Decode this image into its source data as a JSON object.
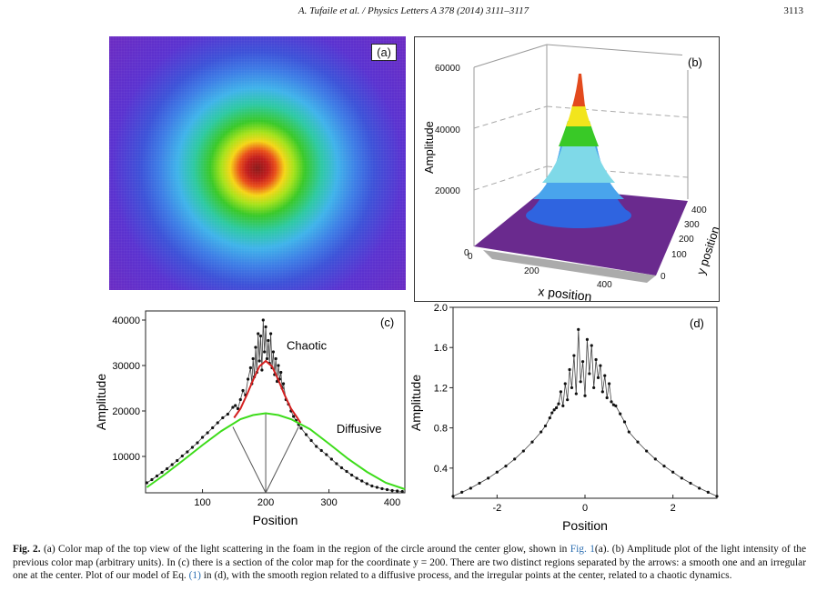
{
  "header": {
    "journal": "A. Tufaile et al. / Physics Letters A 378 (2014) 3111–3117",
    "page": "3113"
  },
  "panels": {
    "a": {
      "label": "(a)"
    },
    "b": {
      "label": "(b)",
      "zlabel": "Amplitude",
      "xlabel": "x position",
      "ylabel": "y position",
      "zticks": [
        "60000",
        "40000",
        "20000",
        "0"
      ],
      "xticks": [
        "0",
        "200",
        "400"
      ],
      "yticks": [
        "400",
        "300",
        "200",
        "100",
        "0"
      ]
    }
  },
  "colors": {
    "chaotic_fit": "#d42020",
    "diffusive_fit": "#3ddc1a",
    "points": "#111111",
    "link": "#2a6db0"
  },
  "chart_data": [
    {
      "type": "scatter",
      "label": "(c)",
      "xlabel": "Position",
      "ylabel": "Amplitude",
      "xlim": [
        10,
        420
      ],
      "ylim": [
        2000,
        42000
      ],
      "xticks": [
        100,
        200,
        300,
        400
      ],
      "yticks": [
        10000,
        20000,
        30000,
        40000
      ],
      "xtick_labels": [
        "100",
        "200",
        "300",
        "400"
      ],
      "ytick_labels": [
        "10000",
        "20000",
        "30000",
        "40000"
      ],
      "annotations": [
        {
          "text": "Chaotic",
          "x": 233,
          "y": 33500
        },
        {
          "text": "Diffusive",
          "x": 312,
          "y": 15200
        }
      ],
      "arrow_origin": {
        "x": 200,
        "y": 2000
      },
      "arrow_targets": [
        {
          "x": 148,
          "y": 16500
        },
        {
          "x": 200,
          "y": 19300
        },
        {
          "x": 252,
          "y": 16500
        }
      ],
      "series": [
        {
          "name": "",
          "kind": "points",
          "x": [
            12,
            20,
            28,
            36,
            44,
            52,
            60,
            68,
            76,
            84,
            92,
            100,
            108,
            116,
            124,
            132,
            140,
            148,
            152,
            156,
            160,
            164,
            168,
            172,
            176,
            178,
            180,
            182,
            184,
            186,
            188,
            190,
            192,
            194,
            196,
            198,
            200,
            202,
            204,
            206,
            208,
            210,
            212,
            214,
            216,
            218,
            220,
            222,
            224,
            226,
            228,
            232,
            236,
            240,
            244,
            248,
            252,
            256,
            264,
            272,
            280,
            288,
            296,
            304,
            312,
            320,
            328,
            336,
            344,
            352,
            360,
            368,
            376,
            384,
            392,
            400,
            408,
            416
          ],
          "y": [
            4200,
            4900,
            5700,
            6500,
            7300,
            8200,
            9100,
            10100,
            11000,
            12000,
            13000,
            14200,
            15200,
            16300,
            17400,
            18500,
            19300,
            20800,
            21200,
            20500,
            22500,
            24500,
            23500,
            27000,
            29500,
            26000,
            31500,
            27500,
            34000,
            28500,
            37000,
            31000,
            36500,
            29000,
            40000,
            33000,
            38500,
            31500,
            35500,
            30500,
            37000,
            29500,
            33000,
            28000,
            31500,
            26500,
            30000,
            27000,
            28500,
            25000,
            26000,
            22500,
            21500,
            20000,
            18800,
            17900,
            17000,
            16200,
            14800,
            13500,
            12200,
            11300,
            10400,
            9400,
            8400,
            7500,
            6700,
            5900,
            5200,
            4600,
            4000,
            3500,
            3200,
            2900,
            2700,
            2500,
            2400,
            2300
          ]
        },
        {
          "name": "",
          "kind": "line",
          "color": "#d42020",
          "x": [
            150,
            160,
            170,
            180,
            190,
            200,
            210,
            220,
            230,
            240,
            250,
            255
          ],
          "y": [
            18500,
            20500,
            23500,
            26800,
            29800,
            31000,
            29800,
            26800,
            23500,
            20500,
            18500,
            17400
          ]
        },
        {
          "name": "",
          "kind": "line",
          "color": "#3ddc1a",
          "x": [
            12,
            40,
            70,
            100,
            130,
            160,
            180,
            200,
            220,
            240,
            270,
            300,
            330,
            360,
            390,
            420
          ],
          "y": [
            3200,
            6000,
            9200,
            12500,
            15600,
            18200,
            19100,
            19500,
            19100,
            18200,
            16000,
            12800,
            9500,
            6600,
            4200,
            2800
          ]
        }
      ]
    },
    {
      "type": "scatter",
      "label": "(d)",
      "xlabel": "Position",
      "ylabel": "Amplitude",
      "xlim": [
        -3,
        3
      ],
      "ylim": [
        0.1,
        2.0
      ],
      "xticks": [
        -2,
        0,
        2
      ],
      "yticks": [
        0.4,
        0.8,
        1.2,
        1.6,
        2.0
      ],
      "xtick_labels": [
        "-2",
        "0",
        "2"
      ],
      "ytick_labels": [
        "0.4",
        "0.8",
        "1.2",
        "1.6",
        "2.0"
      ],
      "series": [
        {
          "name": "",
          "kind": "points",
          "x": [
            -3.0,
            -2.8,
            -2.6,
            -2.4,
            -2.2,
            -2.0,
            -1.8,
            -1.6,
            -1.4,
            -1.2,
            -1.0,
            -0.9,
            -0.8,
            -0.75,
            -0.7,
            -0.65,
            -0.6,
            -0.55,
            -0.5,
            -0.45,
            -0.4,
            -0.35,
            -0.3,
            -0.25,
            -0.2,
            -0.15,
            -0.1,
            -0.05,
            0.0,
            0.05,
            0.1,
            0.15,
            0.2,
            0.25,
            0.3,
            0.35,
            0.4,
            0.45,
            0.5,
            0.55,
            0.6,
            0.65,
            0.7,
            0.8,
            0.9,
            1.0,
            1.2,
            1.4,
            1.6,
            1.8,
            2.0,
            2.2,
            2.4,
            2.6,
            2.8,
            3.0
          ],
          "y": [
            0.12,
            0.16,
            0.2,
            0.25,
            0.3,
            0.36,
            0.42,
            0.49,
            0.57,
            0.66,
            0.76,
            0.82,
            0.9,
            0.95,
            0.98,
            1.0,
            1.04,
            1.16,
            1.02,
            1.24,
            1.08,
            1.38,
            1.2,
            1.52,
            1.14,
            1.78,
            1.26,
            1.46,
            1.12,
            1.68,
            1.34,
            1.62,
            1.2,
            1.48,
            1.3,
            1.42,
            1.16,
            1.32,
            1.1,
            1.24,
            1.06,
            1.03,
            1.02,
            0.94,
            0.86,
            0.76,
            0.66,
            0.57,
            0.49,
            0.42,
            0.36,
            0.3,
            0.25,
            0.2,
            0.16,
            0.12
          ]
        }
      ]
    }
  ],
  "caption": {
    "figno": "Fig. 2.",
    "t1": " (a) Color map of the top view of the light scattering in the foam in the region of the circle around the center glow, shown in ",
    "ref1": "Fig. 1",
    "t2": "(a). (b) Amplitude plot of the light intensity of the previous color map (arbitrary units). In (c) there is a section of the color map for the coordinate y = 200. There are two distinct regions separated by the arrows: a smooth one and an irregular one at the center. Plot of our model of Eq. ",
    "ref2": "(1)",
    "t3": " in (d), with the smooth region related to a diffusive process, and the irregular points at the center, related to a chaotic dynamics."
  }
}
